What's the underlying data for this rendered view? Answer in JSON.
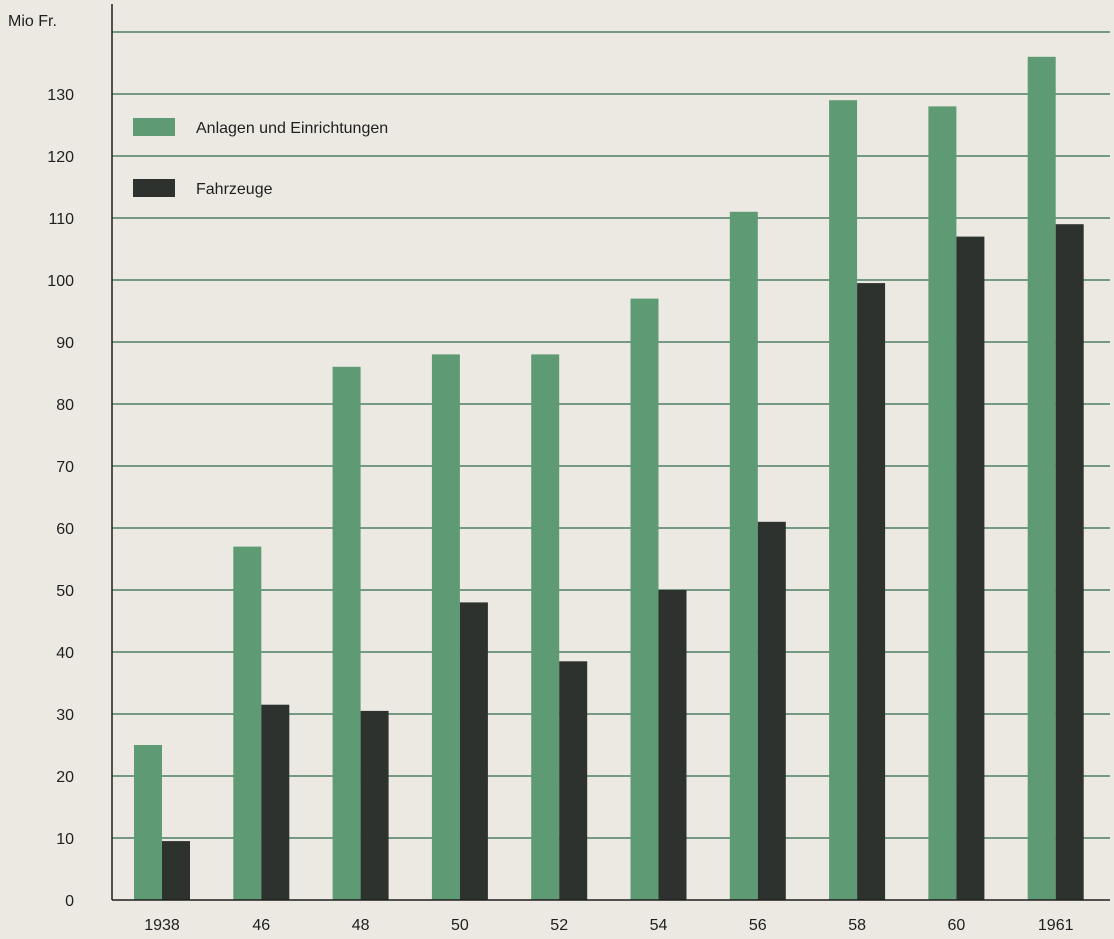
{
  "chart_data": {
    "type": "bar",
    "ylabel": "Mio Fr.",
    "categories": [
      "1938",
      "46",
      "48",
      "50",
      "52",
      "54",
      "56",
      "58",
      "60",
      "1961"
    ],
    "ylim": [
      0,
      140
    ],
    "yticks": [
      0,
      10,
      20,
      30,
      40,
      50,
      60,
      70,
      80,
      90,
      100,
      110,
      120,
      130
    ],
    "grid": true,
    "legend_position": "top-left",
    "series": [
      {
        "name": "Anlagen und Einrichtungen",
        "color": "#5e9a73",
        "values": [
          25,
          57,
          86,
          88,
          88,
          97,
          111,
          129,
          128,
          136
        ]
      },
      {
        "name": "Fahrzeuge",
        "color": "#2d322f",
        "values": [
          9.5,
          31.5,
          30.5,
          48,
          38.5,
          50,
          61,
          99.5,
          107,
          109
        ]
      }
    ]
  },
  "colors": {
    "background": "#ece9e2",
    "gridline": "#2e6b4c",
    "axis": "#1f1f1f"
  }
}
